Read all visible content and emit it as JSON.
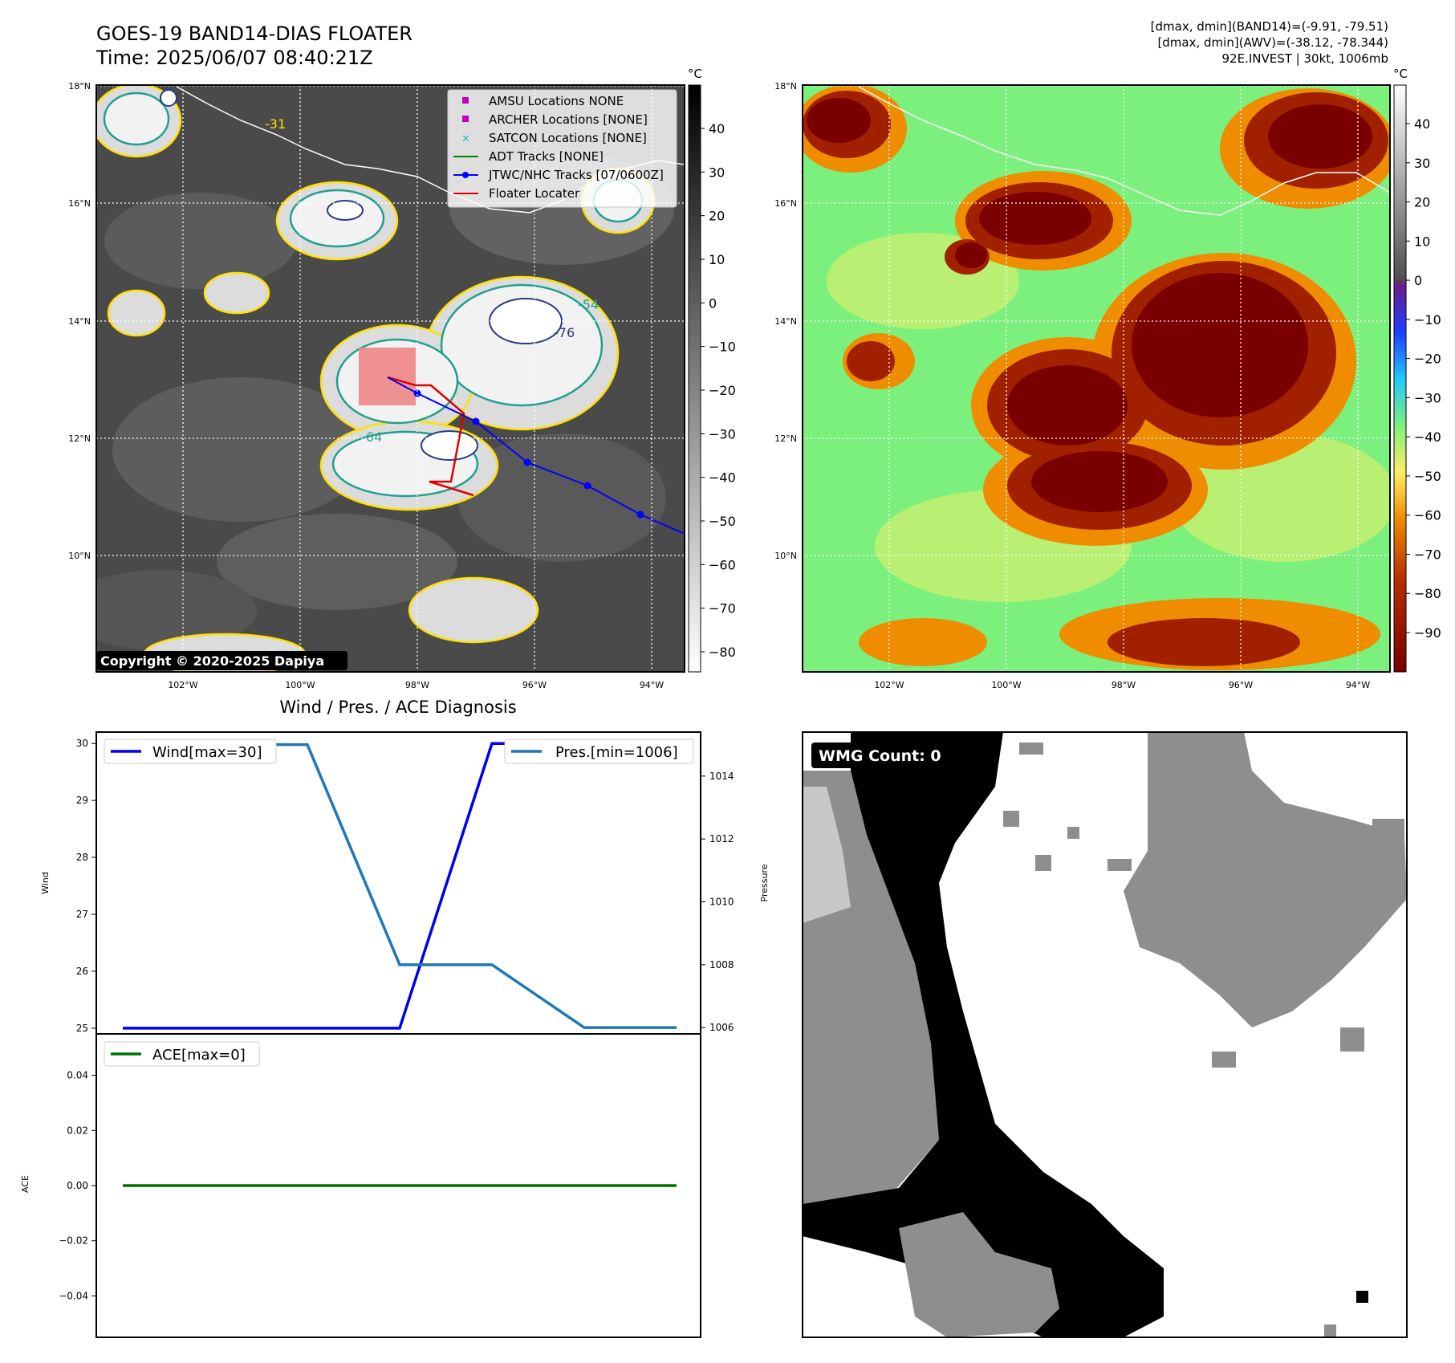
{
  "header": {
    "title": "GOES-19 BAND14-DIAS FLOATER",
    "time": "Time: 2025/06/07 08:40:21Z",
    "info_line1": "[dmax, dmin](BAND14)=(-9.91, -79.51)",
    "info_line2": "[dmax, dmin](AWV)=(-38.12, -78.344)",
    "info_line3": "92E.INVEST | 30kt, 1006mb"
  },
  "maps": {
    "lat_ticks": [
      "18°N",
      "16°N",
      "14°N",
      "12°N",
      "10°N"
    ],
    "lon_ticks": [
      "102°W",
      "100°W",
      "98°W",
      "96°W",
      "94°W"
    ],
    "copyright": "Copyright © 2020-2025 Dapiya",
    "contour_labels": [
      "-31",
      "-54",
      "-64",
      "-76"
    ],
    "legend": [
      {
        "label": "AMSU Locations NONE",
        "marker": "square",
        "color": "#c000c0"
      },
      {
        "label": "ARCHER Locations [NONE]",
        "marker": "square",
        "color": "#c000c0"
      },
      {
        "label": "SATCON Locations [NONE]",
        "marker": "x",
        "color": "#20c0c0"
      },
      {
        "label": "ADT Tracks [NONE]",
        "marker": "line",
        "color": "#008000"
      },
      {
        "label": "JTWC/NHC Tracks [07/0600Z]",
        "marker": "line-dot",
        "color": "#0000ff"
      },
      {
        "label": "Floater Locater",
        "marker": "line",
        "color": "#e00000"
      }
    ]
  },
  "colorbars": {
    "unit": "°C",
    "left_ticks": [
      "40",
      "30",
      "20",
      "10",
      "0",
      "−10",
      "−20",
      "−30",
      "−40",
      "−50",
      "−60",
      "−70",
      "−80"
    ],
    "right_ticks": [
      "40",
      "30",
      "20",
      "10",
      "0",
      "−10",
      "−20",
      "−30",
      "−40",
      "−50",
      "−60",
      "−70",
      "−80",
      "−90"
    ]
  },
  "diagnosis": {
    "title": "Wind / Pres. / ACE Diagnosis",
    "wind_axis_label": "Wind",
    "pres_axis_label": "Pressure",
    "ace_axis_label": "ACE",
    "wind_legend": "Wind[max=30]",
    "pres_legend": "Pres.[min=1006]",
    "ace_legend": "ACE[max=0]"
  },
  "wmg": {
    "count_label": "WMG Count: 0"
  },
  "chart_data": [
    {
      "type": "line",
      "title": "Wind / Pres. / ACE Diagnosis",
      "x": [
        0,
        1,
        2,
        3,
        4,
        5,
        6
      ],
      "series": [
        {
          "name": "Wind[max=30]",
          "axis": "left",
          "color": "#0000ee",
          "values": [
            25,
            25,
            25,
            25,
            30,
            30,
            30
          ]
        },
        {
          "name": "Pres.[min=1006]",
          "axis": "right",
          "color": "#1f77b4",
          "values": [
            1015,
            1015,
            1015,
            1008,
            1008,
            1006,
            1006
          ]
        }
      ],
      "ylabel": "Wind",
      "ylim": [
        24.9,
        30.2
      ],
      "y2label": "Pressure",
      "y2lim": [
        1005.8,
        1015.4
      ],
      "yticks": [
        "30",
        "29",
        "28",
        "27",
        "26",
        "25"
      ],
      "y2ticks": [
        "1014",
        "1012",
        "1010",
        "1008",
        "1006"
      ]
    },
    {
      "type": "line",
      "x": [
        0,
        6
      ],
      "series": [
        {
          "name": "ACE[max=0]",
          "color": "#007000",
          "values": [
            0,
            0
          ]
        }
      ],
      "ylabel": "ACE",
      "ylim": [
        -0.055,
        0.055
      ],
      "yticks": [
        "0.04",
        "0.02",
        "0.00",
        "−0.02",
        "−0.04"
      ]
    }
  ]
}
